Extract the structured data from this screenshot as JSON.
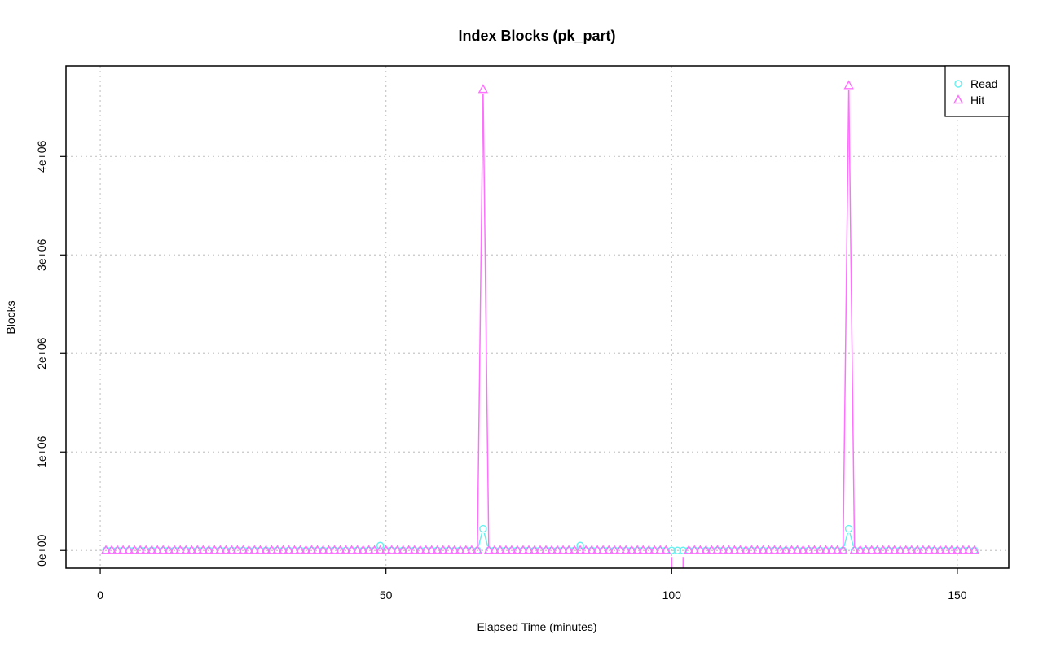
{
  "chart_data": {
    "type": "line",
    "title": "Index Blocks (pk_part)",
    "xlabel": "Elapsed Time (minutes)",
    "ylabel": "Blocks",
    "xlim": [
      -6,
      159
    ],
    "ylim": [
      -180000,
      4920000
    ],
    "x_ticks": [
      0,
      50,
      100,
      150
    ],
    "x_tick_labels": [
      "0",
      "50",
      "100",
      "150"
    ],
    "y_ticks": [
      0,
      1000000,
      2000000,
      3000000,
      4000000
    ],
    "y_tick_labels": [
      "0e+00",
      "1e+06",
      "2e+06",
      "3e+06",
      "4e+06"
    ],
    "grid": true,
    "legend_position": "top-right",
    "x_start": 1,
    "x_end": 153,
    "series": [
      {
        "name": "Read",
        "color": "#66f0f0",
        "marker": "circle",
        "baseline": 0,
        "points": [
          {
            "x": 49,
            "y": 50000
          },
          {
            "x": 67,
            "y": 220000
          },
          {
            "x": 84,
            "y": 50000
          },
          {
            "x": 131,
            "y": 220000
          }
        ]
      },
      {
        "name": "Hit",
        "color": "#ff70ff",
        "marker": "triangle",
        "baseline": 0,
        "points": [
          {
            "x": 67,
            "y": 4680000
          },
          {
            "x": 131,
            "y": 4720000
          }
        ],
        "gaps": [
          100,
          101,
          102
        ]
      }
    ]
  }
}
